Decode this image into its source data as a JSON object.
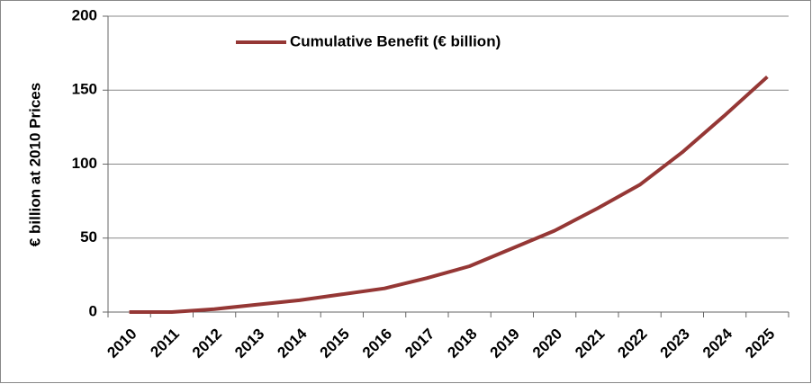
{
  "chart_data": {
    "type": "line",
    "y_label": "€ billion at 2010 Prices",
    "categories": [
      "2010",
      "2011",
      "2012",
      "2013",
      "2014",
      "2015",
      "2016",
      "2017",
      "2018",
      "2019",
      "2020",
      "2021",
      "2022",
      "2023",
      "2024",
      "2025"
    ],
    "series": [
      {
        "name": "Cumulative Benefit (€ billion)",
        "color": "#953735",
        "values": [
          0,
          0,
          2,
          5,
          8,
          12,
          16,
          23,
          31,
          43,
          55,
          70,
          86,
          108,
          133,
          159
        ]
      }
    ],
    "ylim": [
      0,
      200
    ],
    "yticks": [
      0,
      50,
      100,
      150,
      200
    ],
    "grid": true,
    "legend": "top"
  }
}
